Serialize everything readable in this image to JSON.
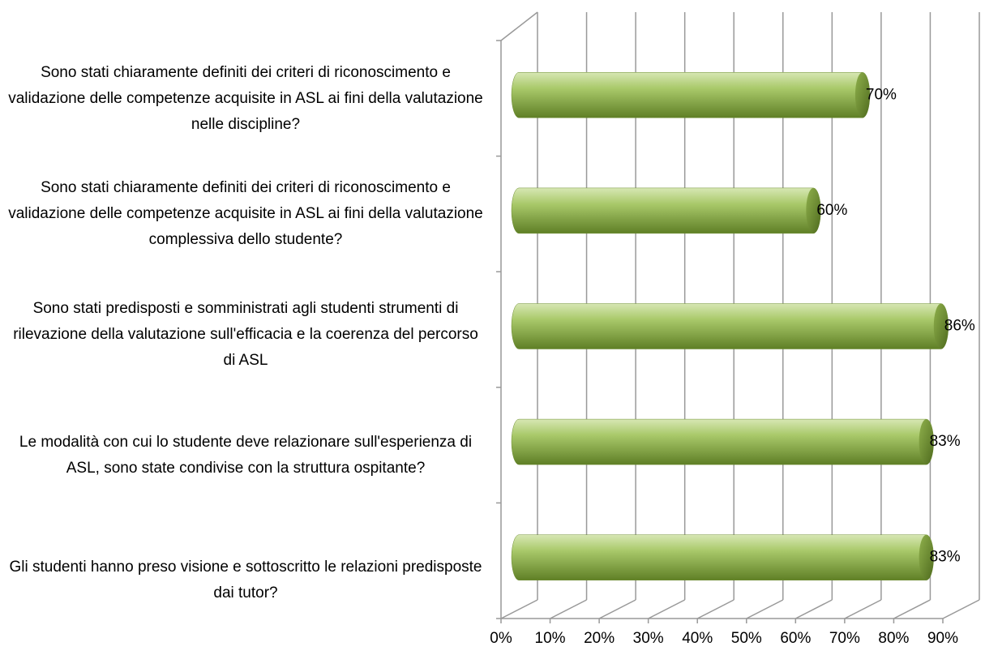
{
  "chart_data": {
    "type": "bar",
    "orientation": "horizontal",
    "categories": [
      "Sono stati chiaramente definiti dei criteri di riconoscimento e validazione delle competenze acquisite in ASL ai fini della valutazione  nelle discipline?",
      "Sono stati chiaramente definiti dei criteri di riconoscimento e validazione delle competenze acquisite in ASL ai fini della valutazione complessiva dello studente?",
      "Sono stati predisposti e somministrati agli studenti strumenti di rilevazione della valutazione sull'efficacia e la coerenza del percorso di ASL",
      "Le modalità con cui lo studente deve relazionare sull'esperienza di ASL, sono state condivise con la struttura ospitante?",
      "Gli studenti hanno preso visione e sottoscritto le relazioni predisposte dai tutor?"
    ],
    "values": [
      70,
      60,
      86,
      83,
      83
    ],
    "value_labels": [
      "70%",
      "60%",
      "86%",
      "83%",
      "83%"
    ],
    "color": "#9bbb59",
    "xlim": [
      0,
      90
    ],
    "xticks": [
      {
        "value": 0,
        "label": "0%"
      },
      {
        "value": 10,
        "label": "10%"
      },
      {
        "value": 20,
        "label": "20%"
      },
      {
        "value": 30,
        "label": "30%"
      },
      {
        "value": 40,
        "label": "40%"
      },
      {
        "value": 50,
        "label": "50%"
      },
      {
        "value": 60,
        "label": "60%"
      },
      {
        "value": 70,
        "label": "70%"
      },
      {
        "value": 80,
        "label": "80%"
      },
      {
        "value": 90,
        "label": "90%"
      }
    ],
    "grid": true
  }
}
